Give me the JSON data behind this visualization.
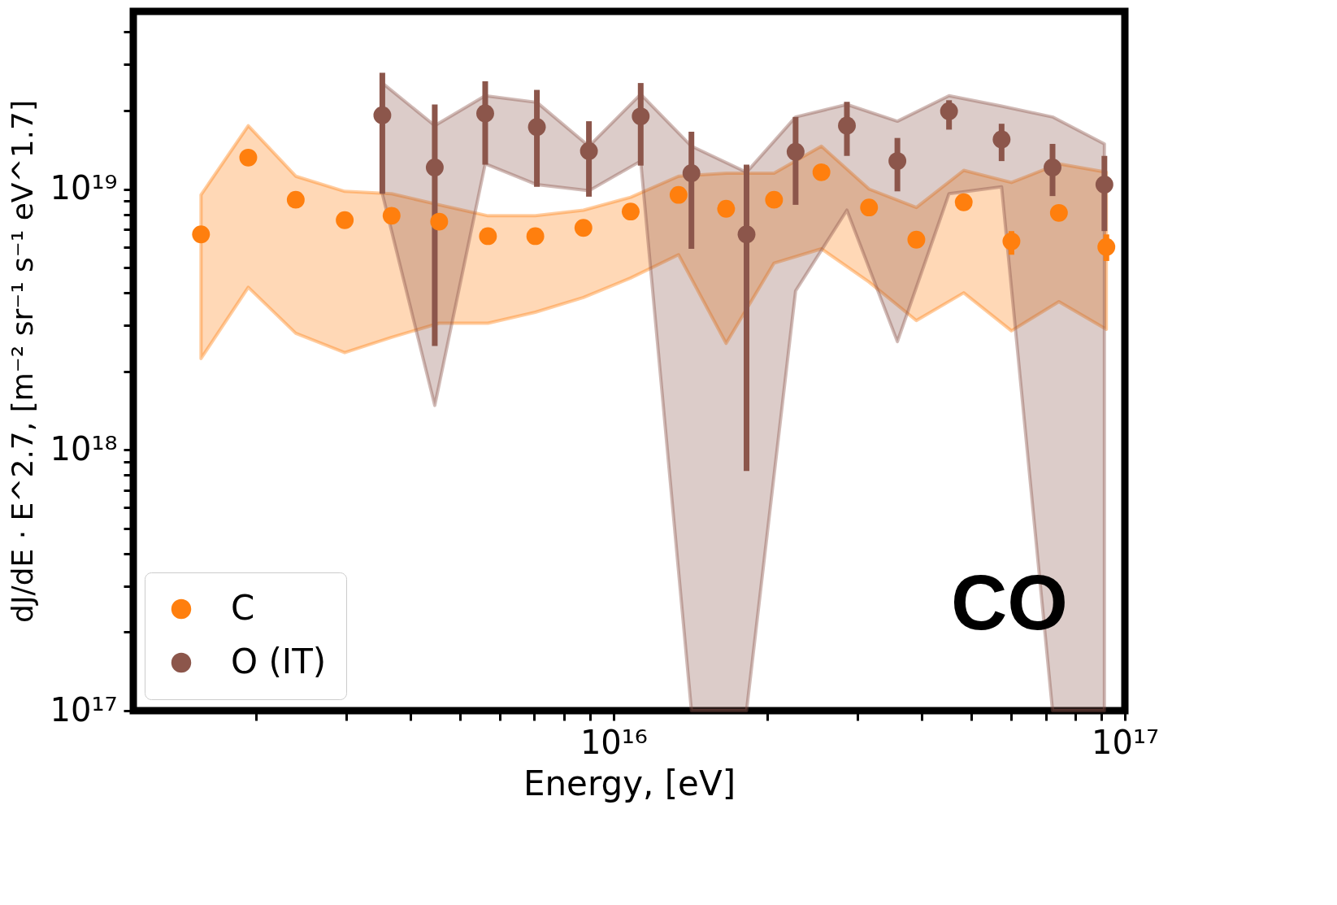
{
  "chart_data": {
    "type": "scatter",
    "xlabel": "Energy, [eV]",
    "ylabel": "dJ/dE · E^2.7, [m⁻² sr⁻¹ s⁻¹ eV^1.7]",
    "log": "xy",
    "grid": false,
    "legend": "bottom left",
    "marker": "circle",
    "xlim": [
      1150000000000000.0,
      1e+17
    ],
    "ylim": [
      1e+17,
      4.8e+19
    ],
    "xticks": [
      {
        "value": 2000000000000000.0,
        "label": null
      },
      {
        "value": 3000000000000000.0,
        "label": null
      },
      {
        "value": 4000000000000000.0,
        "label": null
      },
      {
        "value": 5000000000000000.0,
        "label": null
      },
      {
        "value": 6000000000000000.0,
        "label": null
      },
      {
        "value": 7000000000000000.0,
        "label": null
      },
      {
        "value": 8000000000000000.0,
        "label": null
      },
      {
        "value": 9000000000000000.0,
        "label": null
      },
      {
        "value": 1e+16,
        "label": "10¹⁶"
      },
      {
        "value": 2e+16,
        "label": null
      },
      {
        "value": 3e+16,
        "label": null
      },
      {
        "value": 4e+16,
        "label": null
      },
      {
        "value": 5e+16,
        "label": null
      },
      {
        "value": 6e+16,
        "label": null
      },
      {
        "value": 7e+16,
        "label": null
      },
      {
        "value": 8e+16,
        "label": null
      },
      {
        "value": 9e+16,
        "label": null
      },
      {
        "value": 1e+17,
        "label": "10¹⁷"
      }
    ],
    "yticks": [
      {
        "value": 1e+17,
        "label": "10¹⁷"
      },
      {
        "value": 2e+17,
        "label": null
      },
      {
        "value": 3e+17,
        "label": null
      },
      {
        "value": 4e+17,
        "label": null
      },
      {
        "value": 5e+17,
        "label": null
      },
      {
        "value": 6e+17,
        "label": null
      },
      {
        "value": 7e+17,
        "label": null
      },
      {
        "value": 8e+17,
        "label": null
      },
      {
        "value": 9e+17,
        "label": null
      },
      {
        "value": 1e+18,
        "label": "10¹⁸"
      },
      {
        "value": 2e+18,
        "label": null
      },
      {
        "value": 3e+18,
        "label": null
      },
      {
        "value": 4e+18,
        "label": null
      },
      {
        "value": 5e+18,
        "label": null
      },
      {
        "value": 6e+18,
        "label": null
      },
      {
        "value": 7e+18,
        "label": null
      },
      {
        "value": 8e+18,
        "label": null
      },
      {
        "value": 9e+18,
        "label": null
      },
      {
        "value": 1e+19,
        "label": "10¹⁹"
      },
      {
        "value": 2e+19,
        "label": null
      },
      {
        "value": 3e+19,
        "label": null
      },
      {
        "value": 4e+19,
        "label": null
      }
    ],
    "annotations": [
      "CO"
    ],
    "series": [
      {
        "name": "C",
        "color": "#ff7f0e",
        "x": [
          1560000000000000.0,
          1930000000000000.0,
          2390000000000000.0,
          2980000000000000.0,
          3680000000000000.0,
          4560000000000000.0,
          5680000000000000.0,
          7030000000000000.0,
          8730000000000000.0,
          1.08e+16,
          1.34e+16,
          1.66e+16,
          2.06e+16,
          2.55e+16,
          3.16e+16,
          3.91e+16,
          4.84e+16,
          6e+16,
          7.43e+16,
          9.2e+16
        ],
        "values": [
          6.7e+18,
          1.32e+19,
          9.1e+18,
          7.6e+18,
          7.9e+18,
          7.5e+18,
          6.6e+18,
          6.6e+18,
          7.1e+18,
          8.2e+18,
          9.5e+18,
          8.4e+18,
          9.1e+18,
          1.16e+19,
          8.5e+18,
          6.4e+18,
          8.9e+18,
          6.3e+18,
          8.1e+18,
          6e+18
        ],
        "errors": [
          null,
          null,
          null,
          null,
          null,
          null,
          null,
          null,
          null,
          null,
          null,
          null,
          null,
          null,
          null,
          null,
          null,
          [
            5.6e+18,
            6.9e+18
          ],
          null,
          [
            5.3e+18,
            6.7e+18
          ]
        ],
        "upper": [
          9.5e+18,
          1.75e+19,
          1.12e+19,
          9.8e+18,
          9.6e+18,
          8.7e+18,
          7.9e+18,
          7.9e+18,
          8.3e+18,
          9.3e+18,
          1.12e+19,
          1.15e+19,
          1.15e+19,
          1.46e+19,
          1e+19,
          8.5e+18,
          1.18e+19,
          1.06e+19,
          1.25e+19,
          1.16e+19
        ],
        "lower": [
          2.24e+18,
          4.2e+18,
          2.8e+18,
          2.36e+18,
          2.7e+18,
          3.06e+18,
          3.06e+18,
          3.37e+18,
          3.84e+18,
          4.56e+18,
          5.6e+18,
          2.56e+18,
          5.2e+18,
          5.9e+18,
          4.4e+18,
          3.13e+18,
          4e+18,
          2.86e+18,
          3.7e+18,
          2.9e+18
        ]
      },
      {
        "name": "O (IT)",
        "color": "#8c564b",
        "x": [
          3530000000000000.0,
          4470000000000000.0,
          5610000000000000.0,
          7080000000000000.0,
          8950000000000000.0,
          1.13e+16,
          1.42e+16,
          1.82e+16,
          2.27e+16,
          2.86e+16,
          3.59e+16,
          4.53e+16,
          5.74e+16,
          7.22e+16,
          9.12e+16
        ],
        "values": [
          1.92e+19,
          1.21e+19,
          1.95e+19,
          1.73e+19,
          1.4e+19,
          1.9e+19,
          1.15e+19,
          6.7e+18,
          1.39e+19,
          1.75e+19,
          1.28e+19,
          1.99e+19,
          1.55e+19,
          1.21e+19,
          1.04e+19
        ],
        "errors": [
          [
            9.6e+18,
            2.79e+19
          ],
          [
            2.5e+18,
            2.11e+19
          ],
          [
            1.24e+19,
            2.59e+19
          ],
          [
            1.02e+19,
            2.4e+19
          ],
          [
            9.35e+18,
            1.82e+19
          ],
          [
            1.23e+19,
            2.55e+19
          ],
          [
            5.9e+18,
            1.66e+19
          ],
          [
            8.3e+17,
            1.24e+19
          ],
          [
            8.7e+18,
            1.89e+19
          ],
          [
            1.34e+19,
            2.16e+19
          ],
          [
            9.8e+18,
            1.57e+19
          ],
          [
            1.69e+19,
            2.19e+19
          ],
          [
            1.28e+19,
            1.78e+19
          ],
          [
            9.4e+18,
            1.49e+19
          ],
          [
            6.9e+18,
            1.34e+19
          ]
        ],
        "upper": [
          2.55e+19,
          1.75e+19,
          2.28e+19,
          2.15e+19,
          1.46e+19,
          2.31e+19,
          1.46e+19,
          1.16e+19,
          1.89e+19,
          2.11e+19,
          1.82e+19,
          2.28e+19,
          2.08e+19,
          1.89e+19,
          1.49e+19
        ],
        "lower": [
          9.6e+18,
          1.48e+18,
          1.25e+19,
          1.04e+19,
          9.85e+18,
          1.28e+19,
          1e+17,
          1e+17,
          4.07e+18,
          8.3e+18,
          2.6e+18,
          9.6e+18,
          1.02e+19,
          1e+17,
          1e+17
        ]
      }
    ]
  }
}
